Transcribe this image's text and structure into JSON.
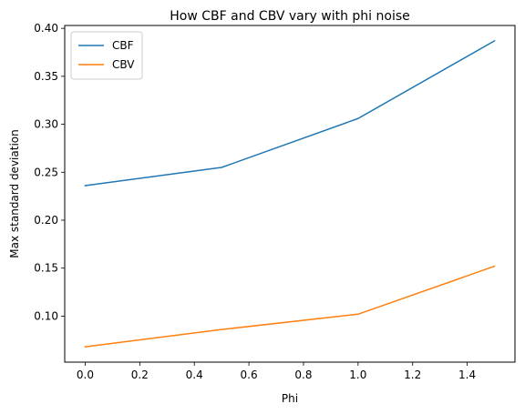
{
  "chart_data": {
    "type": "line",
    "title": "How CBF and CBV vary with phi noise",
    "xlabel": "Phi",
    "ylabel": "Max standard deviation",
    "x": [
      0.0,
      0.5,
      1.0,
      1.5
    ],
    "series": [
      {
        "name": "CBF",
        "color": "#1f77b4",
        "values": [
          0.236,
          0.255,
          0.306,
          0.387
        ]
      },
      {
        "name": "CBV",
        "color": "#ff7f0e",
        "values": [
          0.068,
          0.086,
          0.102,
          0.152
        ]
      }
    ],
    "xlim": [
      -0.075,
      1.575
    ],
    "ylim": [
      0.052,
      0.403
    ],
    "xticks": [
      0.0,
      0.2,
      0.4,
      0.6,
      0.8,
      1.0,
      1.2,
      1.4
    ],
    "xtick_labels": [
      "0.0",
      "0.2",
      "0.4",
      "0.6",
      "0.8",
      "1.0",
      "1.2",
      "1.4"
    ],
    "yticks": [
      0.1,
      0.15,
      0.2,
      0.25,
      0.3,
      0.35,
      0.4
    ],
    "ytick_labels": [
      "0.10",
      "0.15",
      "0.20",
      "0.25",
      "0.30",
      "0.35",
      "0.40"
    ],
    "grid": false,
    "legend_position": "top-left"
  }
}
